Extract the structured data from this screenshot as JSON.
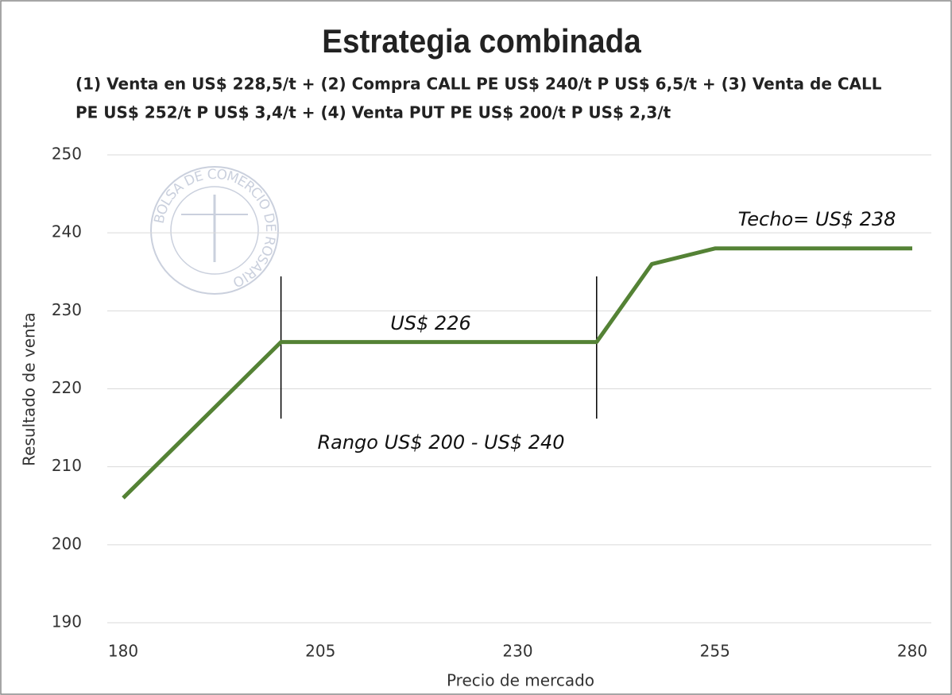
{
  "chart_data": {
    "type": "line",
    "title": "Estrategia combinada",
    "subtitle": [
      "(1) Venta en US$ 228,5/t + (2) Compra CALL PE US$ 240/t P US$ 6,5/t + (3) Venta de CALL",
      "PE US$ 252/t P US$ 3,4/t + (4) Venta PUT PE US$ 200/t P US$ 2,3/t"
    ],
    "x_label": "Precio de mercado",
    "y_label": "Resultado de venta",
    "x": [
      180,
      200,
      240,
      247,
      255,
      280
    ],
    "values": [
      206,
      226,
      226,
      236,
      238,
      238
    ],
    "color": "#548235",
    "xlim": [
      180,
      280
    ],
    "xticks": [
      180,
      205,
      230,
      255,
      280
    ],
    "ylim": [
      190,
      250
    ],
    "yticks": [
      190,
      200,
      210,
      220,
      230,
      240,
      250
    ],
    "grid": true,
    "annotations": [
      "Techo= US$ 238",
      "US$ 226",
      "Rango US$ 200 - US$ 240"
    ],
    "watermark": "BOLSA DE COMERCIO DE ROSARIO"
  }
}
